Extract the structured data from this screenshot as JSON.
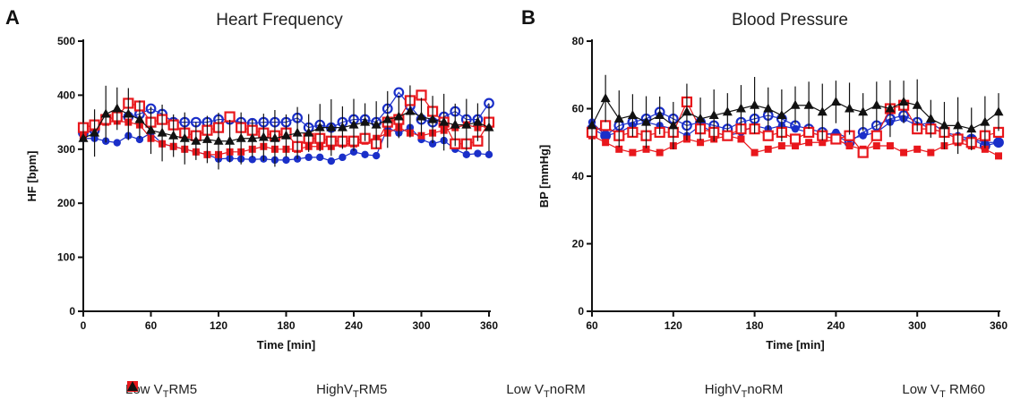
{
  "chart_data": [
    {
      "type": "scatter",
      "panel": "A",
      "title": "Heart Frequency",
      "xlabel": "Time [min]",
      "ylabel": "HF [bpm]",
      "xlim": [
        0,
        360
      ],
      "ylim": [
        0,
        500
      ],
      "xticks": [
        "0",
        "60",
        "120",
        "180",
        "240",
        "300",
        "360"
      ],
      "yticks": [
        "0",
        "100",
        "200",
        "300",
        "400",
        "500"
      ],
      "x": [
        0,
        10,
        20,
        30,
        40,
        50,
        60,
        70,
        80,
        90,
        100,
        110,
        120,
        130,
        140,
        150,
        160,
        170,
        180,
        190,
        200,
        210,
        220,
        230,
        240,
        250,
        260,
        270,
        280,
        290,
        300,
        310,
        320,
        330,
        340,
        350,
        360
      ],
      "series": [
        {
          "key": "lowRM5",
          "values": [
            320,
            320,
            315,
            312,
            325,
            318,
            330,
            310,
            305,
            300,
            295,
            290,
            282,
            283,
            282,
            281,
            282,
            280,
            280,
            282,
            285,
            285,
            278,
            285,
            295,
            290,
            288,
            340,
            330,
            340,
            318,
            310,
            316,
            300,
            290,
            292,
            290
          ]
        },
        {
          "key": "highRM5",
          "values": [
            330,
            335,
            355,
            360,
            360,
            365,
            375,
            365,
            350,
            350,
            350,
            350,
            355,
            355,
            350,
            348,
            350,
            350,
            350,
            358,
            340,
            345,
            340,
            350,
            355,
            355,
            350,
            375,
            405,
            380,
            355,
            350,
            360,
            370,
            355,
            355,
            385
          ]
        },
        {
          "key": "lowNoRM",
          "values": [
            325,
            340,
            350,
            352,
            350,
            345,
            320,
            310,
            305,
            300,
            295,
            290,
            290,
            295,
            295,
            300,
            305,
            300,
            300,
            300,
            305,
            305,
            305,
            310,
            310,
            315,
            320,
            330,
            340,
            330,
            325,
            330,
            335,
            340,
            345,
            340,
            345
          ]
        },
        {
          "key": "highNoRM",
          "values": [
            340,
            345,
            355,
            360,
            385,
            380,
            350,
            355,
            345,
            330,
            325,
            335,
            340,
            360,
            340,
            335,
            330,
            325,
            330,
            305,
            320,
            320,
            315,
            315,
            315,
            320,
            310,
            350,
            355,
            390,
            400,
            370,
            350,
            310,
            310,
            315,
            350
          ]
        },
        {
          "key": "lowRM60",
          "values": [
            320,
            330,
            365,
            375,
            365,
            355,
            335,
            330,
            325,
            320,
            315,
            318,
            315,
            315,
            320,
            320,
            322,
            320,
            325,
            330,
            330,
            340,
            340,
            340,
            345,
            350,
            345,
            355,
            360,
            370,
            360,
            355,
            350,
            345,
            345,
            350,
            340
          ]
        }
      ]
    },
    {
      "type": "scatter",
      "panel": "B",
      "title": "Blood Pressure",
      "xlabel": "Time [min]",
      "ylabel": "BP [mmHg]",
      "xlim": [
        60,
        360
      ],
      "ylim": [
        0,
        80
      ],
      "xticks": [
        "60",
        "120",
        "180",
        "240",
        "300",
        "360"
      ],
      "yticks": [
        "0",
        "20",
        "40",
        "60",
        "80"
      ],
      "x": [
        60,
        70,
        80,
        90,
        100,
        110,
        120,
        130,
        140,
        150,
        160,
        170,
        180,
        190,
        200,
        210,
        220,
        230,
        240,
        250,
        260,
        270,
        280,
        290,
        300,
        310,
        320,
        330,
        340,
        350,
        360
      ],
      "series": [
        {
          "key": "lowRM5",
          "values": [
            56,
            52,
            53,
            55,
            56,
            55,
            54,
            52,
            55,
            53,
            52,
            53,
            55,
            54,
            55,
            54,
            53,
            52,
            53,
            51,
            52,
            53,
            56,
            57,
            55,
            56,
            53,
            52,
            51,
            50,
            50
          ]
        },
        {
          "key": "highRM5",
          "values": [
            54,
            52,
            55,
            56,
            57,
            59,
            57,
            55,
            56,
            55,
            54,
            56,
            57,
            58,
            57,
            55,
            54,
            53,
            52,
            50,
            53,
            55,
            57,
            58,
            56,
            54,
            53,
            51,
            51,
            49,
            50
          ]
        },
        {
          "key": "lowNoRM",
          "values": [
            52,
            50,
            48,
            47,
            48,
            47,
            49,
            51,
            50,
            51,
            52,
            51,
            47,
            48,
            49,
            49,
            50,
            50,
            51,
            49,
            48,
            49,
            49,
            47,
            48,
            47,
            49,
            50,
            49,
            48,
            46
          ]
        },
        {
          "key": "highNoRM",
          "values": [
            53,
            55,
            52,
            53,
            52,
            53,
            53,
            62,
            54,
            53,
            52,
            54,
            54,
            52,
            53,
            51,
            53,
            52,
            51,
            52,
            47,
            52,
            60,
            61,
            54,
            54,
            53,
            51,
            50,
            52,
            53
          ]
        },
        {
          "key": "lowRM60",
          "values": [
            55,
            63,
            57,
            58,
            56,
            58,
            55,
            59,
            57,
            58,
            59,
            60,
            61,
            60,
            58,
            61,
            61,
            59,
            62,
            60,
            59,
            61,
            60,
            62,
            61,
            57,
            55,
            55,
            54,
            56,
            59
          ]
        }
      ]
    }
  ],
  "panels": {
    "a": {
      "letter": "A"
    },
    "b": {
      "letter": "B"
    }
  },
  "legend": [
    {
      "key": "lowRM5",
      "symbol": "filled-circle",
      "color": "#1a2fc9",
      "prefix": "Low V",
      "sub": "T",
      "suffix": "RM5"
    },
    {
      "key": "highRM5",
      "symbol": "open-circle",
      "color": "#1a2fc9",
      "prefix": "HighV",
      "sub": "T",
      "suffix": "RM5"
    },
    {
      "key": "lowNoRM",
      "symbol": "filled-square",
      "color": "#e8171c",
      "prefix": "Low V",
      "sub": "T",
      "suffix": "noRM"
    },
    {
      "key": "highNoRM",
      "symbol": "open-square",
      "color": "#e8171c",
      "prefix": "HighV",
      "sub": "T",
      "suffix": "noRM"
    },
    {
      "key": "lowRM60",
      "symbol": "filled-triangle",
      "color": "#111111",
      "prefix": "Low V",
      "sub": "T",
      "suffix": " RM60"
    }
  ],
  "colors": {
    "blue": "#1a2fc9",
    "red": "#e8171c",
    "black": "#111111"
  }
}
